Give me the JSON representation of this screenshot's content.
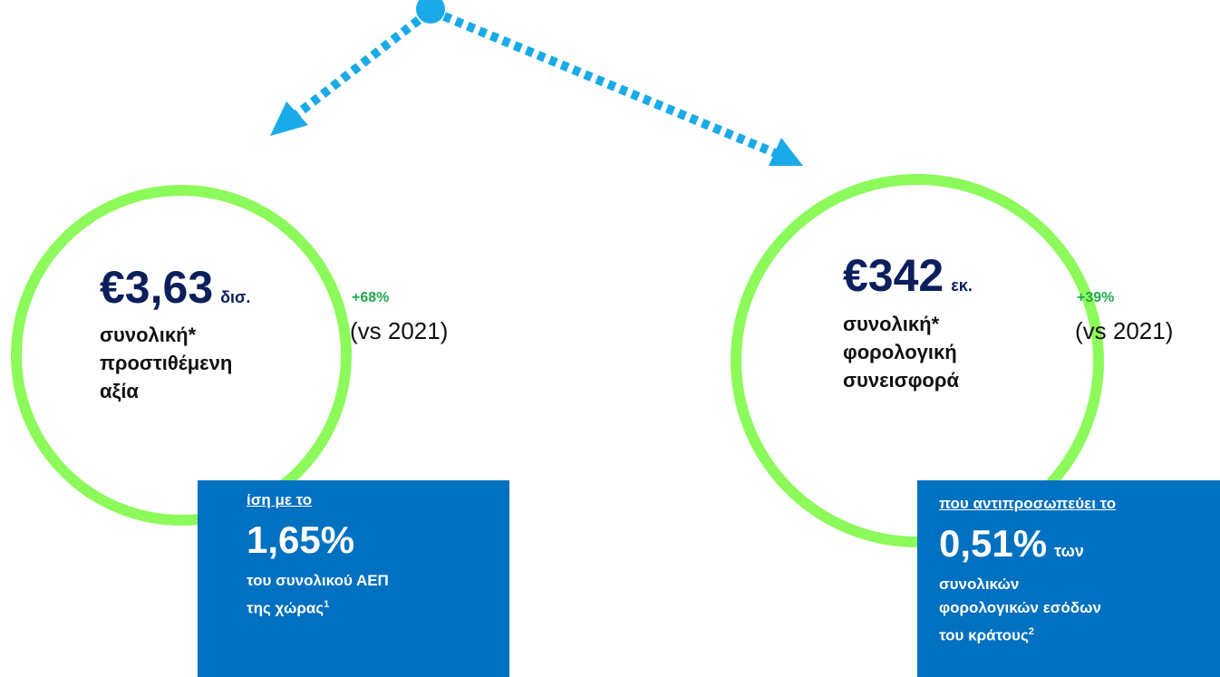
{
  "items": [
    {
      "amount": "€3,63",
      "unit": "δισ.",
      "caption": [
        "συνολική*",
        "προστιθέμενη",
        "αξία"
      ],
      "change": "+68%",
      "comparison": "(vs 2021)",
      "box": {
        "heading": "ίση με το",
        "figure": "1,65%",
        "figure_suffix": "",
        "text": [
          "του συνολικού ΑΕΠ",
          "της χώρας"
        ],
        "footnote": "1"
      }
    },
    {
      "amount": "€342",
      "unit": "εκ.",
      "caption": [
        "συνολική*",
        "φορολογική",
        "συνεισφορά"
      ],
      "change": "+39%",
      "comparison": "(vs 2021)",
      "box": {
        "heading": "που αντιπροσωπεύει το",
        "figure": "0,51%",
        "figure_suffix": "των",
        "text": [
          "συνολικών",
          "φορολογικών εσόδων",
          "του κράτους"
        ],
        "footnote": "2"
      }
    }
  ]
}
